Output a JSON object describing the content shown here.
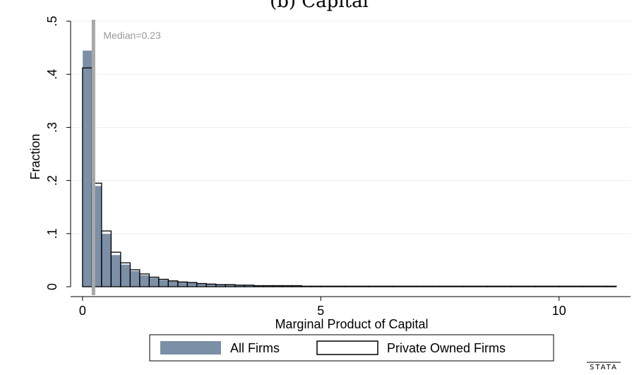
{
  "chart_data": {
    "type": "bar",
    "title": "(b) Capital",
    "xlabel": "Marginal Product of Capital",
    "ylabel": "Fraction",
    "xlim": [
      -0.25,
      11.5
    ],
    "ylim": [
      0,
      0.5
    ],
    "x_ticks": [
      0,
      5,
      10
    ],
    "x_tick_labels": [
      "0",
      "5",
      "10"
    ],
    "y_ticks": [
      0,
      0.1,
      0.2,
      0.3,
      0.4,
      0.5
    ],
    "y_tick_labels": [
      "0",
      ".1",
      ".2",
      ".3",
      ".4",
      ".5"
    ],
    "bin_width": 0.2,
    "bin_starts": [
      0,
      0.2,
      0.4,
      0.6,
      0.8,
      1.0,
      1.2,
      1.4,
      1.6,
      1.8,
      2.0,
      2.2,
      2.4,
      2.6,
      2.8,
      3.0,
      3.2,
      3.4,
      3.6,
      3.8,
      4.0,
      4.2,
      4.4,
      4.6,
      4.8,
      5.0,
      5.5,
      6.0,
      6.5,
      7.0,
      7.5,
      8.0,
      8.5,
      9.0,
      9.5,
      10.0,
      10.5,
      11.0
    ],
    "bin_widths": [
      0.2,
      0.2,
      0.2,
      0.2,
      0.2,
      0.2,
      0.2,
      0.2,
      0.2,
      0.2,
      0.2,
      0.2,
      0.2,
      0.2,
      0.2,
      0.2,
      0.2,
      0.2,
      0.2,
      0.2,
      0.2,
      0.2,
      0.2,
      0.2,
      0.2,
      0.5,
      0.5,
      0.5,
      0.5,
      0.5,
      0.5,
      0.5,
      0.5,
      0.5,
      0.5,
      0.5,
      0.5,
      0.2
    ],
    "series": [
      {
        "name": "All Firms",
        "style": "filled",
        "color": "#7b8fa6",
        "values": [
          0.445,
          0.19,
          0.1,
          0.06,
          0.042,
          0.03,
          0.022,
          0.017,
          0.013,
          0.011,
          0.009,
          0.008,
          0.006,
          0.005,
          0.004,
          0.004,
          0.003,
          0.003,
          0.002,
          0.002,
          0.002,
          0.002,
          0.002,
          0.001,
          0.001,
          0.001,
          0.001,
          0.001,
          0.001,
          0.001,
          0.001,
          0.001,
          0.001,
          0.001,
          0.001,
          0.001,
          0.001,
          0.001
        ]
      },
      {
        "name": "Private Owned Firms",
        "style": "outline",
        "color": "#000000",
        "values": [
          0.412,
          0.195,
          0.105,
          0.065,
          0.045,
          0.032,
          0.024,
          0.018,
          0.014,
          0.011,
          0.009,
          0.008,
          0.006,
          0.005,
          0.004,
          0.004,
          0.003,
          0.003,
          0.002,
          0.002,
          0.002,
          0.002,
          0.002,
          0.001,
          0.001,
          0.001,
          0.001,
          0.001,
          0.001,
          0.001,
          0.001,
          0.001,
          0.001,
          0.001,
          0.001,
          0.001,
          0.001,
          0.001
        ]
      }
    ],
    "median": {
      "value": 0.23,
      "label": "Median=0.23",
      "color": "#a8a8a8"
    },
    "grid": true,
    "gridline_color": "#e8eef4",
    "legend_placement": "bottom",
    "legend": [
      "All Firms",
      "Private Owned Firms"
    ]
  },
  "watermark": "STATA"
}
